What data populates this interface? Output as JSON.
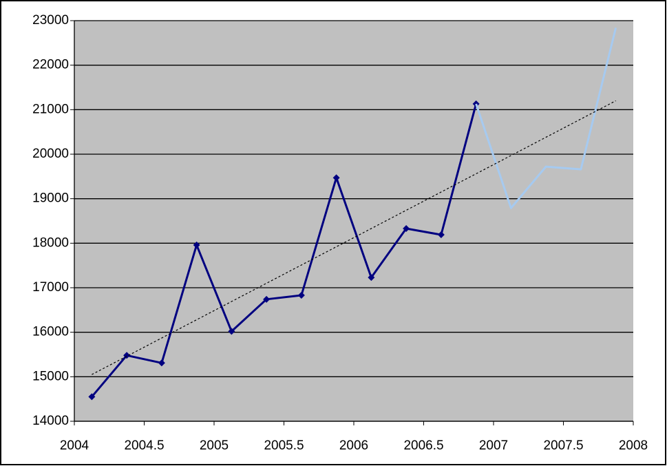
{
  "chart_data": {
    "type": "line",
    "xlim": [
      2004,
      2008
    ],
    "xticks": [
      2004,
      2004.5,
      2005,
      2005.5,
      2006,
      2006.5,
      2007,
      2007.5,
      2008
    ],
    "ylim": [
      14000,
      23000
    ],
    "yticks": [
      14000,
      15000,
      16000,
      17000,
      18000,
      19000,
      20000,
      21000,
      22000,
      23000
    ],
    "grid": true,
    "background": "#c0c0c0",
    "series": [
      {
        "color": "#000080",
        "markers": true,
        "x": [
          2004.125,
          2004.375,
          2004.625,
          2004.875,
          2005.125,
          2005.375,
          2005.625,
          2005.875,
          2006.125,
          2006.375,
          2006.625,
          2006.875
        ],
        "values": [
          14550,
          15480,
          15310,
          17960,
          16020,
          16740,
          16830,
          19470,
          17230,
          18330,
          18190,
          21130
        ]
      },
      {
        "color": "#a6caf0",
        "markers": false,
        "x": [
          2006.875,
          2007.125,
          2007.375,
          2007.625,
          2007.875
        ],
        "values": [
          21130,
          18790,
          19720,
          19660,
          22840
        ]
      },
      {
        "color": "#000000",
        "markers": false,
        "dashed": true,
        "x": [
          2004.125,
          2007.875
        ],
        "values": [
          15050,
          21200
        ]
      }
    ]
  }
}
